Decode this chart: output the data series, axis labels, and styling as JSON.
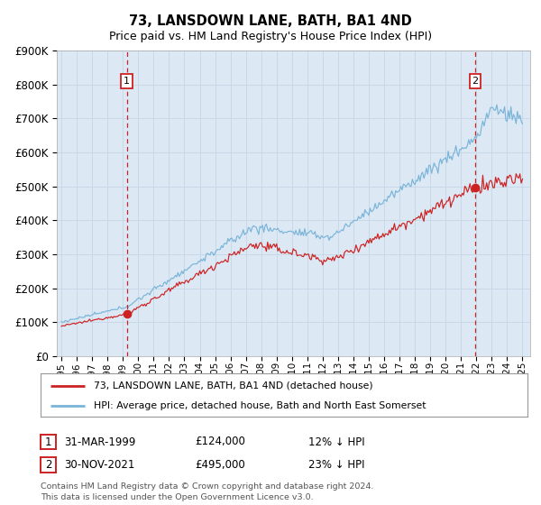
{
  "title": "73, LANSDOWN LANE, BATH, BA1 4ND",
  "subtitle": "Price paid vs. HM Land Registry's House Price Index (HPI)",
  "title_fontsize": 10.5,
  "subtitle_fontsize": 9,
  "background_color": "#ffffff",
  "plot_bg_color": "#dce9f5",
  "grid_color": "#c8d8e8",
  "hpi_color": "#7ab4d8",
  "price_color": "#cc2222",
  "marker_color": "#cc2222",
  "vline_color": "#cc2222",
  "ylim": [
    0,
    900000
  ],
  "yticks": [
    0,
    100000,
    200000,
    300000,
    400000,
    500000,
    600000,
    700000,
    800000,
    900000
  ],
  "x_start_year": 1995,
  "x_end_year": 2025,
  "ann1_year": 1999.25,
  "ann1_price": 124000,
  "ann2_year": 2021.92,
  "ann2_price": 495000,
  "legend_line1": "73, LANSDOWN LANE, BATH, BA1 4ND (detached house)",
  "legend_line2": "HPI: Average price, detached house, Bath and North East Somerset",
  "table_row1": [
    "1",
    "31-MAR-1999",
    "£124,000",
    "12% ↓ HPI"
  ],
  "table_row2": [
    "2",
    "30-NOV-2021",
    "£495,000",
    "23% ↓ HPI"
  ],
  "footer": "Contains HM Land Registry data © Crown copyright and database right 2024.\nThis data is licensed under the Open Government Licence v3.0."
}
